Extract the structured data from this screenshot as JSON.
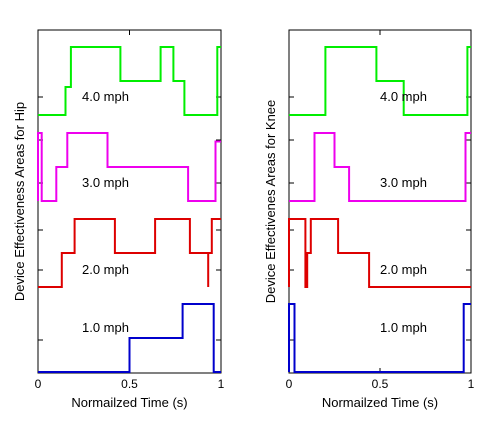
{
  "chart_data": [
    {
      "type": "line",
      "xlabel": "Normailzed Time (s)",
      "ylabel": "Device Effectiveness Areas for Hip",
      "xlim": [
        0,
        1
      ],
      "x_ticks": [
        "0",
        "0.5",
        "1"
      ],
      "grid": false,
      "rows": [
        {
          "label": "4.0 mph",
          "color": "#00ee00",
          "x": [
            0.0,
            0.15,
            0.15,
            0.18,
            0.18,
            0.45,
            0.45,
            0.67,
            0.67,
            0.74,
            0.74,
            0.8,
            0.8,
            0.98,
            0.98,
            1.0
          ],
          "y": [
            0.0,
            0.0,
            0.33,
            0.33,
            0.8,
            0.8,
            0.4,
            0.4,
            0.8,
            0.8,
            0.4,
            0.4,
            0.0,
            0.0,
            0.8,
            0.8
          ]
        },
        {
          "label": "3.0 mph",
          "color": "#ee00ee",
          "x": [
            0.0,
            0.0,
            0.02,
            0.02,
            0.1,
            0.1,
            0.16,
            0.16,
            0.38,
            0.38,
            0.82,
            0.82,
            0.97,
            0.97,
            1.0
          ],
          "y": [
            0.0,
            0.8,
            0.8,
            0.0,
            0.0,
            0.4,
            0.4,
            0.8,
            0.8,
            0.4,
            0.4,
            0.0,
            0.0,
            0.7,
            0.7
          ]
        },
        {
          "label": "2.0 mph",
          "color": "#dd0000",
          "x": [
            0.0,
            0.13,
            0.13,
            0.2,
            0.2,
            0.42,
            0.42,
            0.64,
            0.64,
            0.83,
            0.83,
            0.93,
            0.93,
            0.93,
            0.95,
            0.95,
            1.0
          ],
          "y": [
            0.0,
            0.0,
            0.4,
            0.4,
            0.8,
            0.8,
            0.4,
            0.4,
            0.8,
            0.8,
            0.4,
            0.4,
            0.0,
            0.4,
            0.4,
            0.8,
            0.8
          ]
        },
        {
          "label": "1.0 mph",
          "color": "#0000cc",
          "x": [
            0.0,
            0.5,
            0.5,
            0.79,
            0.79,
            0.96,
            0.96,
            1.0
          ],
          "y": [
            0.0,
            0.0,
            0.4,
            0.4,
            0.8,
            0.8,
            0.0,
            0.0
          ]
        }
      ]
    },
    {
      "type": "line",
      "xlabel": "Normailzed Time (s)",
      "ylabel": "Device Effectivenes Areas for Knee",
      "xlim": [
        0,
        1
      ],
      "x_ticks": [
        "0",
        "0.5",
        "1"
      ],
      "grid": false,
      "rows": [
        {
          "label": "4.0 mph",
          "color": "#00ee00",
          "x": [
            0.0,
            0.2,
            0.2,
            0.48,
            0.48,
            0.63,
            0.63,
            0.98,
            0.98,
            1.0
          ],
          "y": [
            0.0,
            0.0,
            0.8,
            0.8,
            0.4,
            0.4,
            0.0,
            0.0,
            0.8,
            0.8
          ]
        },
        {
          "label": "3.0 mph",
          "color": "#ee00ee",
          "x": [
            0.0,
            0.14,
            0.14,
            0.25,
            0.25,
            0.33,
            0.33,
            0.97,
            0.97,
            1.0
          ],
          "y": [
            0.0,
            0.0,
            0.8,
            0.8,
            0.4,
            0.4,
            0.0,
            0.0,
            0.8,
            0.8
          ]
        },
        {
          "label": "2.0 mph",
          "color": "#dd0000",
          "x": [
            0.0,
            0.0,
            0.09,
            0.09,
            0.1,
            0.1,
            0.12,
            0.12,
            0.27,
            0.27,
            0.44,
            0.44,
            1.0
          ],
          "y": [
            0.0,
            0.8,
            0.8,
            0.0,
            0.0,
            0.4,
            0.4,
            0.8,
            0.8,
            0.4,
            0.4,
            0.0,
            0.0
          ]
        },
        {
          "label": "1.0 mph",
          "color": "#0000cc",
          "x": [
            0.0,
            0.0,
            0.03,
            0.03,
            0.96,
            0.96,
            1.0
          ],
          "y": [
            0.0,
            0.8,
            0.8,
            0.0,
            0.0,
            0.8,
            0.8
          ]
        }
      ]
    }
  ]
}
